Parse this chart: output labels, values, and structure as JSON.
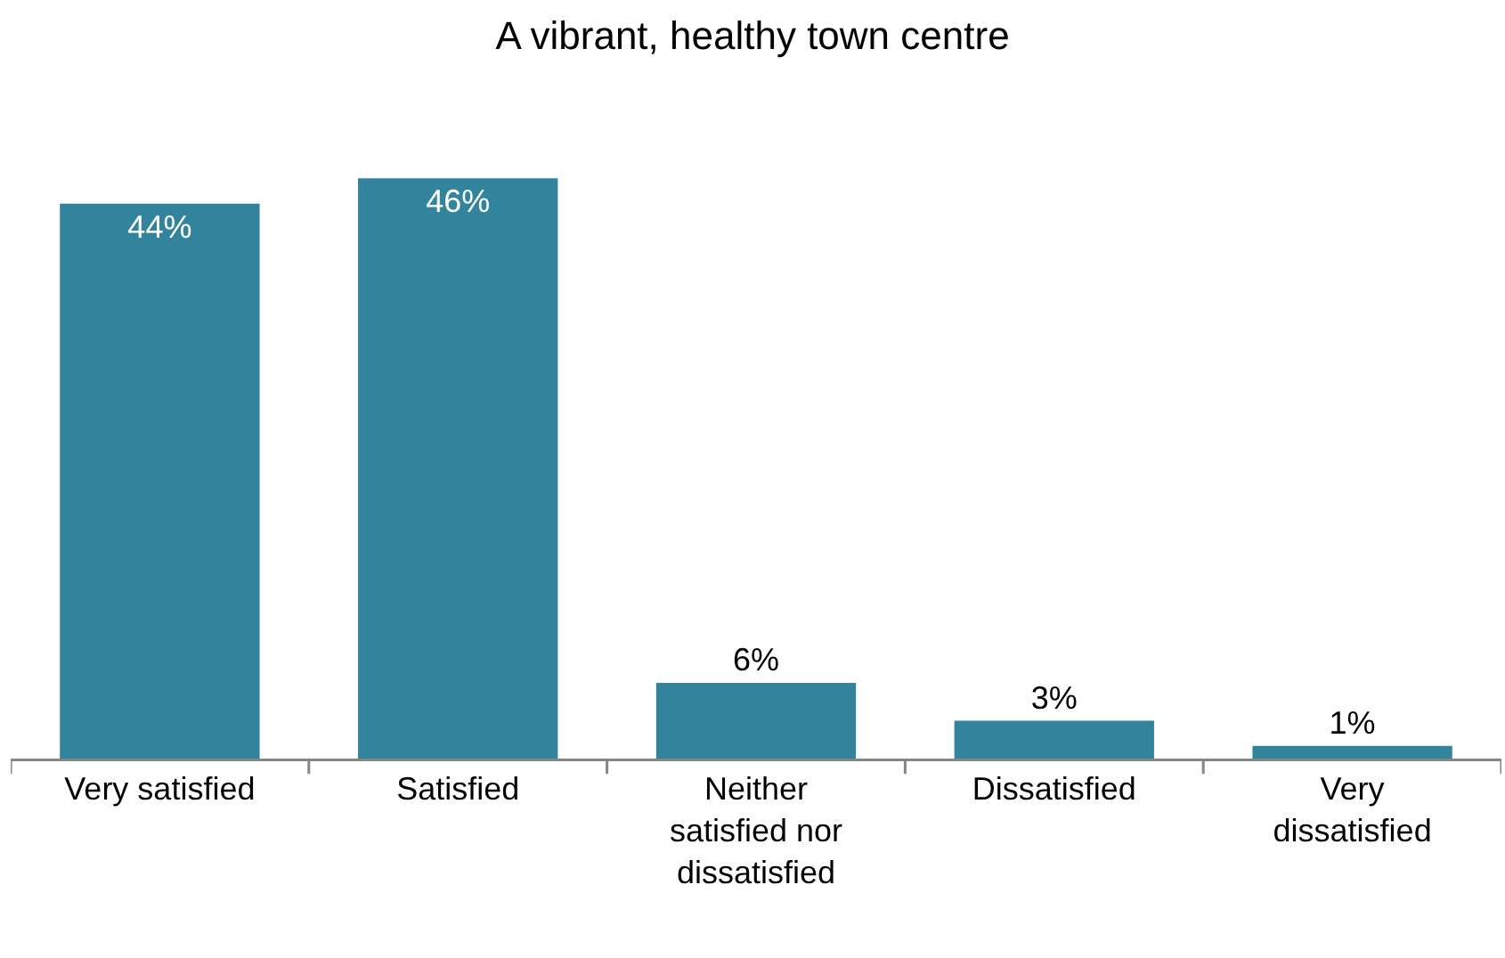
{
  "chart_data": {
    "type": "bar",
    "title": "A vibrant, healthy town centre",
    "categories": [
      "Very satisfied",
      "Satisfied",
      "Neither satisfied nor dissatisfied",
      "Dissatisfied",
      "Very dissatisfied"
    ],
    "values": [
      44,
      46,
      6,
      3,
      1
    ],
    "color": "#31849b",
    "value_labels": [
      "44%",
      "46%",
      "6%",
      "3%",
      "1%"
    ]
  }
}
